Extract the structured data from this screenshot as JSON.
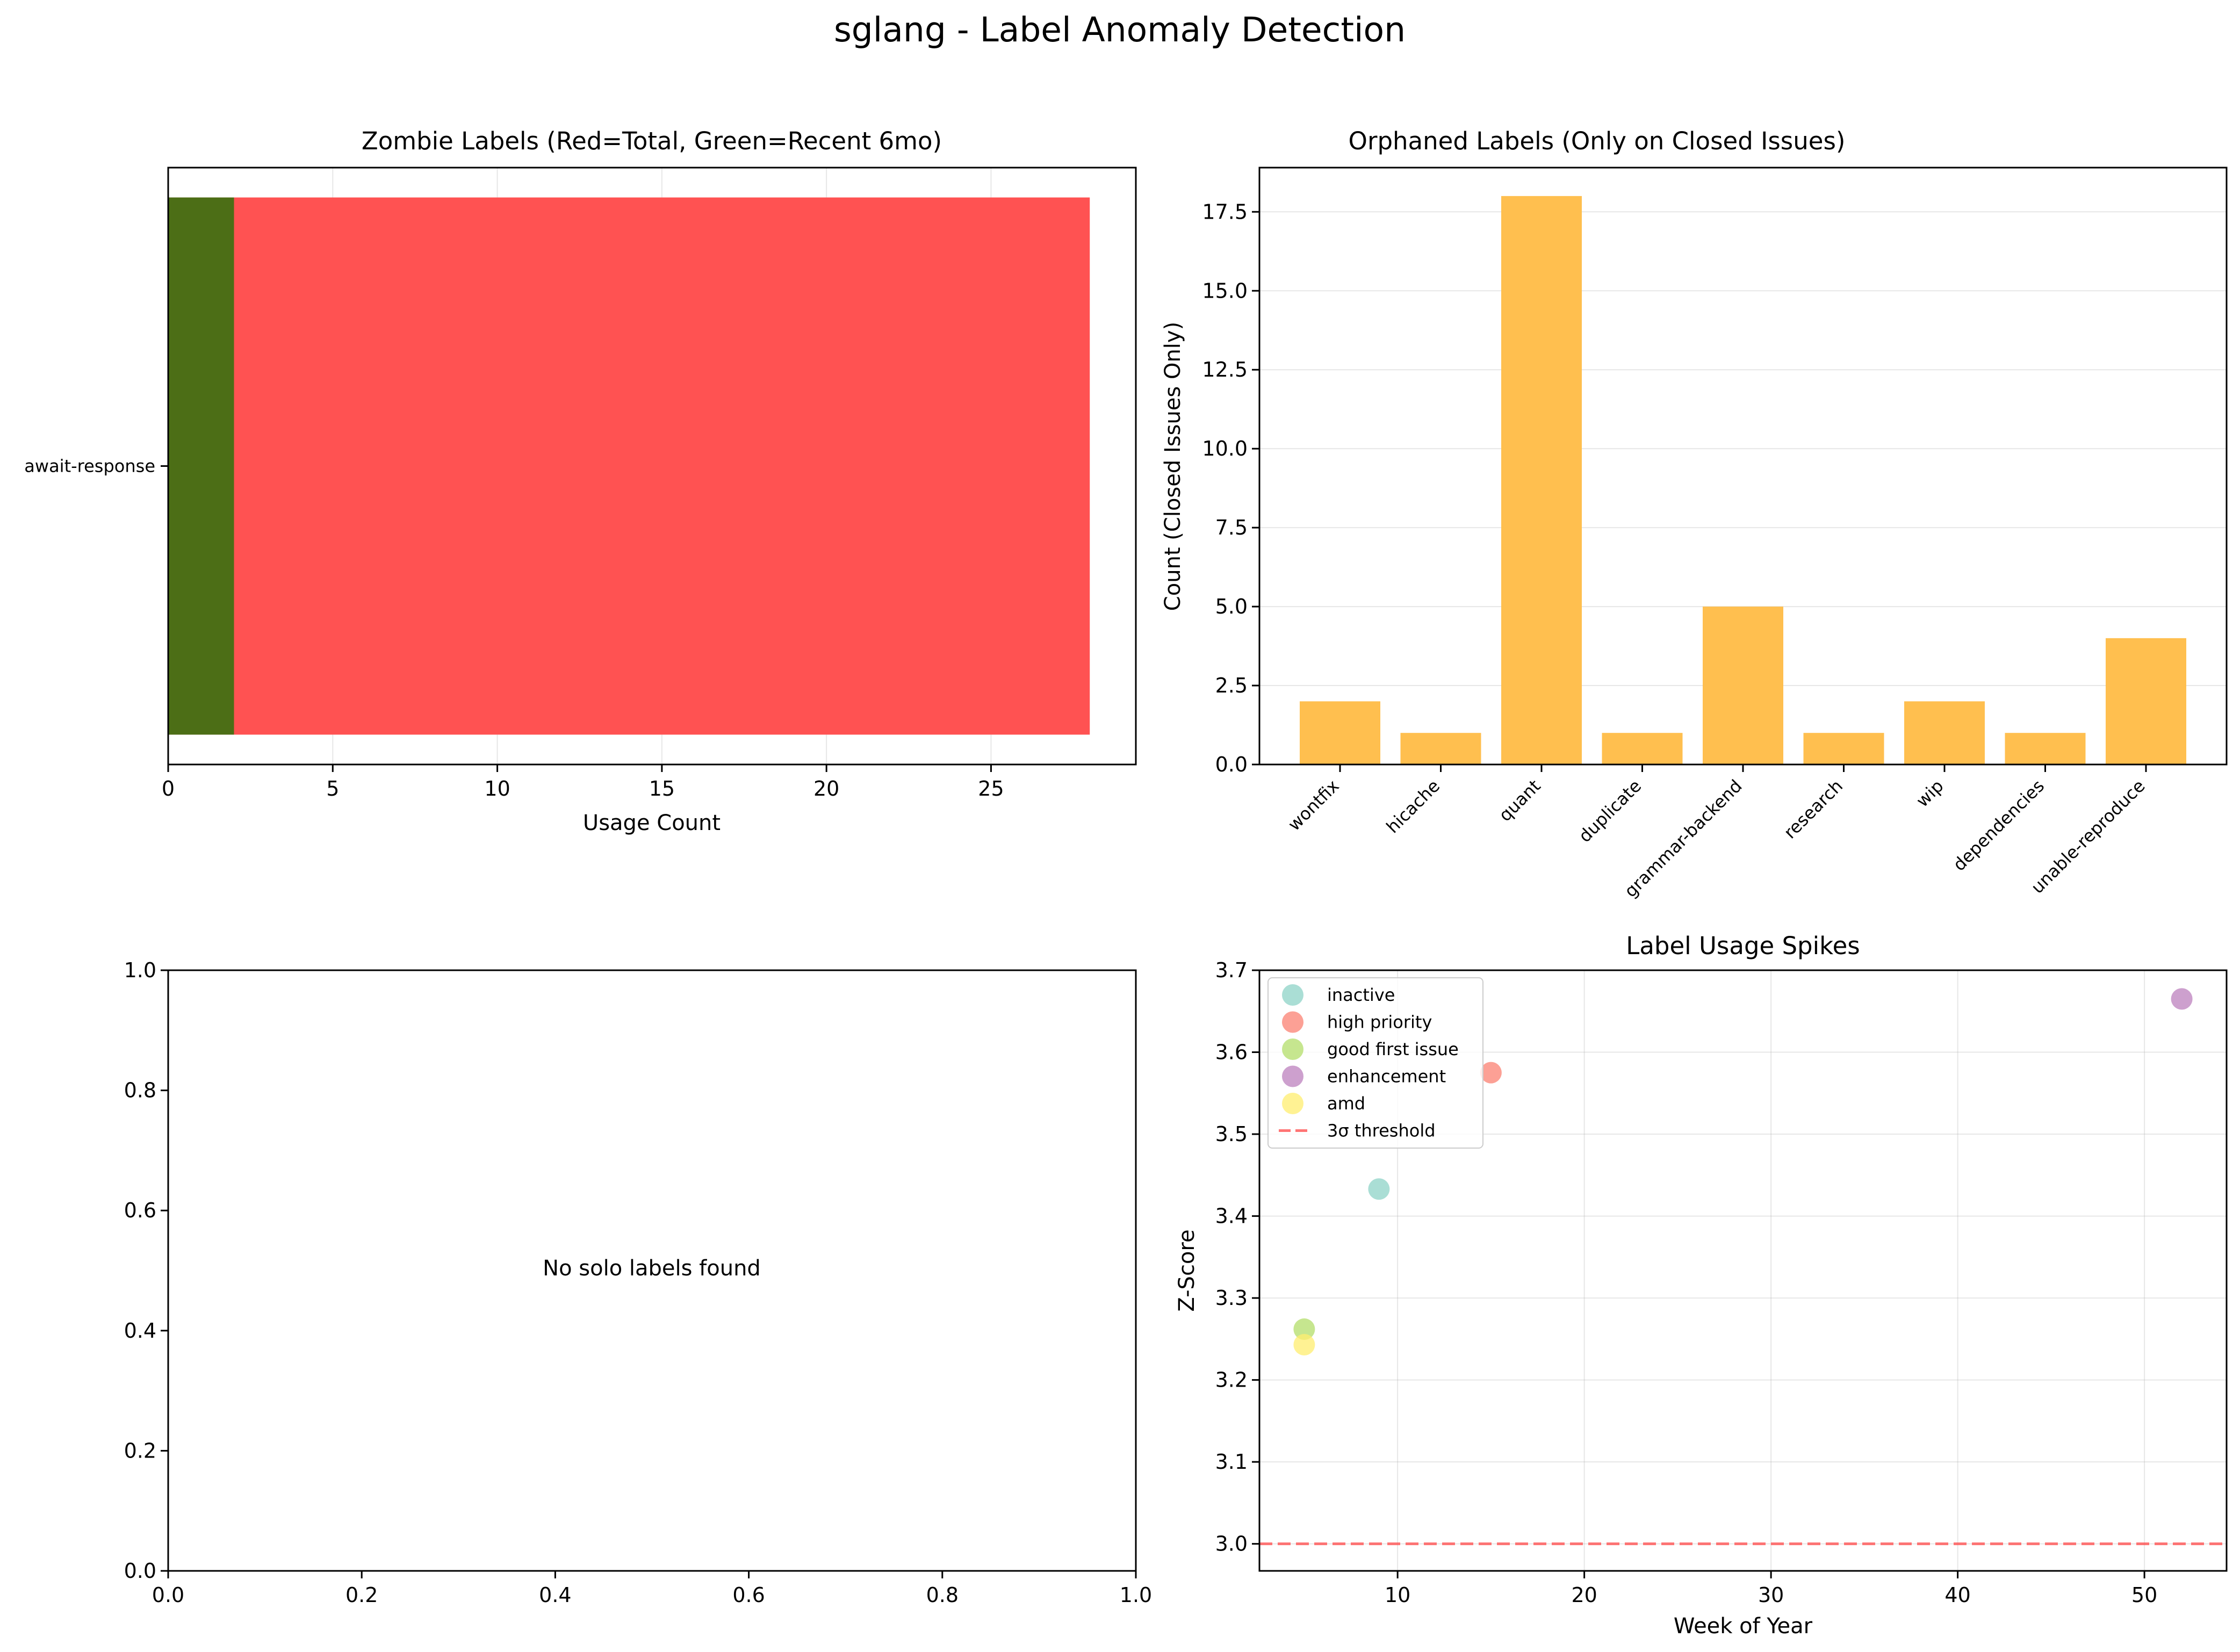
{
  "suptitle": "sglang - Label Anomaly Detection",
  "chart_data": [
    {
      "type": "bar",
      "orientation": "horizontal",
      "title": "Zombie Labels (Red=Total, Green=Recent 6mo)",
      "xlabel": "Usage Count",
      "ylabel": "",
      "categories": [
        "await-response"
      ],
      "series": [
        {
          "key": "total",
          "values": [
            28
          ],
          "color": "#ff5252"
        },
        {
          "key": "recent",
          "values": [
            2
          ],
          "color": "#4c6e16"
        }
      ],
      "xlim": [
        0,
        29.4
      ],
      "xticks": [
        0,
        5,
        10,
        15,
        20,
        25
      ],
      "grid": "x"
    },
    {
      "type": "bar",
      "title": "Orphaned Labels (Only on Closed Issues)",
      "xlabel": "",
      "ylabel": "Count (Closed Issues Only)",
      "categories": [
        "wontfix",
        "hicache",
        "quant",
        "duplicate",
        "grammar-backend",
        "research",
        "wip",
        "dependencies",
        "unable-reproduce"
      ],
      "values": [
        2,
        1,
        18,
        1,
        5,
        1,
        2,
        1,
        4
      ],
      "color": "#ffbf4f",
      "ylim": [
        0,
        18.9
      ],
      "yticks": [
        0.0,
        2.5,
        5.0,
        7.5,
        10.0,
        12.5,
        15.0,
        17.5
      ],
      "grid": "y"
    },
    {
      "type": "empty",
      "message": "No solo labels found",
      "xlim": [
        0,
        1
      ],
      "ylim": [
        0,
        1
      ],
      "xticks": [
        0.0,
        0.2,
        0.4,
        0.6,
        0.8,
        1.0
      ],
      "yticks": [
        0.0,
        0.2,
        0.4,
        0.6,
        0.8,
        1.0
      ]
    },
    {
      "type": "scatter",
      "title": "Label Usage Spikes",
      "xlabel": "Week of Year",
      "ylabel": "Z-Score",
      "xlim": [
        2.6,
        54.4
      ],
      "ylim": [
        2.967,
        3.7
      ],
      "xticks": [
        10,
        20,
        30,
        40,
        50
      ],
      "yticks": [
        3.0,
        3.1,
        3.2,
        3.3,
        3.4,
        3.5,
        3.6,
        3.7
      ],
      "grid": "both",
      "legend_position": "upper-left",
      "series": [
        {
          "name": "inactive",
          "color": "#8dd3c7",
          "points": [
            [
              9,
              3.433
            ]
          ]
        },
        {
          "name": "high priority",
          "color": "#fb8072",
          "points": [
            [
              15,
              3.575
            ]
          ]
        },
        {
          "name": "good first issue",
          "color": "#b3de69",
          "points": [
            [
              5,
              3.262
            ]
          ]
        },
        {
          "name": "enhancement",
          "color": "#bc80bd",
          "points": [
            [
              52,
              3.665
            ]
          ]
        },
        {
          "name": "amd",
          "color": "#ffed6f",
          "points": [
            [
              5,
              3.243
            ]
          ]
        }
      ],
      "threshold": {
        "name": "3σ threshold",
        "value": 3.0,
        "color": "#ff5252"
      }
    }
  ]
}
